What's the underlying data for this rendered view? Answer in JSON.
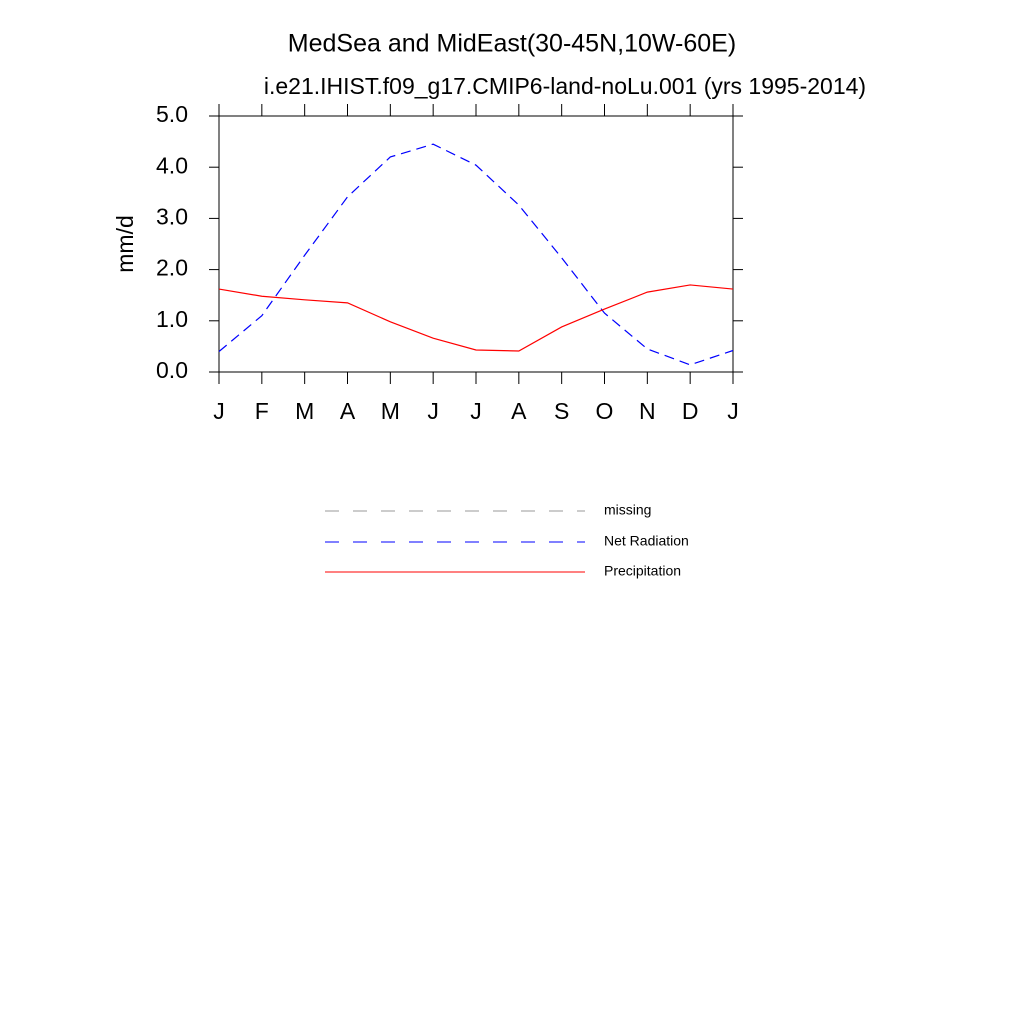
{
  "chart_data": {
    "type": "line",
    "title": "MedSea and MidEast(30-45N,10W-60E)",
    "subtitle": "i.e21.IHIST.f09_g17.CMIP6-land-noLu.001 (yrs 1995-2014)",
    "y_label": "mm/d",
    "categories": [
      "J",
      "F",
      "M",
      "A",
      "M",
      "J",
      "J",
      "A",
      "S",
      "O",
      "N",
      "D",
      "J"
    ],
    "series": [
      {
        "name": "missing",
        "color": "#999999",
        "dash": true,
        "values": [
          null,
          null,
          null,
          null,
          null,
          null,
          null,
          null,
          null,
          null,
          null,
          null,
          null
        ]
      },
      {
        "name": "Net Radiation",
        "color": "#0000ff",
        "dash": true,
        "values": [
          0.4,
          1.1,
          2.28,
          3.42,
          4.2,
          4.45,
          4.04,
          3.26,
          2.23,
          1.15,
          0.45,
          0.14,
          0.42
        ]
      },
      {
        "name": "Precipitation",
        "color": "#ff0000",
        "dash": false,
        "values": [
          1.62,
          1.48,
          1.41,
          1.35,
          0.98,
          0.66,
          0.43,
          0.41,
          0.88,
          1.23,
          1.56,
          1.7,
          1.62
        ]
      }
    ],
    "ylim": [
      0,
      5
    ],
    "yticks": [
      {
        "value": 0,
        "label": "0.0"
      },
      {
        "value": 1,
        "label": "1.0"
      },
      {
        "value": 2,
        "label": "2.0"
      },
      {
        "value": 3,
        "label": "3.0"
      },
      {
        "value": 4,
        "label": "4.0"
      },
      {
        "value": 5,
        "label": "5.0"
      }
    ]
  }
}
